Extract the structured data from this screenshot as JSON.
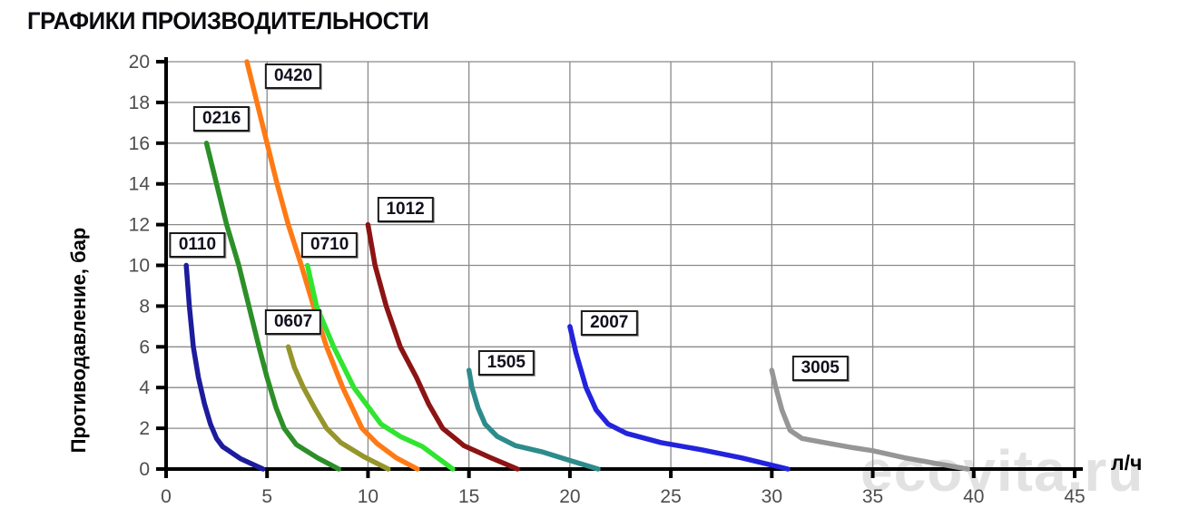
{
  "title": "ГРАФИКИ ПРОИЗВОДИТЕЛЬНОСТИ",
  "watermark": "ecovita.ru",
  "chart_data": {
    "type": "line",
    "title": "ГРАФИКИ ПРОИЗВОДИТЕЛЬНОСТИ",
    "xlabel": "л/ч",
    "ylabel": "Противодавление, бар",
    "xlim": [
      0,
      45
    ],
    "ylim": [
      0,
      20
    ],
    "x_ticks": [
      0,
      5,
      10,
      15,
      20,
      25,
      30,
      35,
      40,
      45
    ],
    "y_ticks": [
      0,
      2,
      4,
      6,
      8,
      10,
      12,
      14,
      16,
      18,
      20
    ],
    "grid": true,
    "legend": "inline-label-boxes",
    "colors": {
      "grid": "#8a8a8a",
      "axis": "#000000",
      "tick_label": "#4d4d4d"
    },
    "series": [
      {
        "name": "0110",
        "color": "#1c1c9c",
        "label_pos": [
          1.55,
          11.0
        ],
        "points": [
          [
            1.0,
            10
          ],
          [
            1.15,
            8
          ],
          [
            1.35,
            6
          ],
          [
            1.6,
            4.5
          ],
          [
            1.9,
            3.2
          ],
          [
            2.2,
            2.2
          ],
          [
            2.5,
            1.5
          ],
          [
            2.8,
            1.1
          ],
          [
            3.7,
            0.5
          ],
          [
            4.8,
            0
          ]
        ]
      },
      {
        "name": "0216",
        "color": "#2c8f28",
        "label_pos": [
          2.75,
          17.2
        ],
        "points": [
          [
            2.0,
            16
          ],
          [
            2.5,
            14
          ],
          [
            3.0,
            12
          ],
          [
            3.6,
            10
          ],
          [
            4.1,
            8
          ],
          [
            4.6,
            6
          ],
          [
            5.0,
            4.5
          ],
          [
            5.45,
            3
          ],
          [
            5.85,
            2
          ],
          [
            6.45,
            1.2
          ],
          [
            7.5,
            0.55
          ],
          [
            8.55,
            0
          ]
        ]
      },
      {
        "name": "0420",
        "color": "#ff7a14",
        "label_pos": [
          6.3,
          19.3
        ],
        "points": [
          [
            4.0,
            20
          ],
          [
            4.5,
            18
          ],
          [
            5.0,
            16
          ],
          [
            5.5,
            14
          ],
          [
            6.05,
            12
          ],
          [
            6.7,
            10
          ],
          [
            7.3,
            8
          ],
          [
            7.95,
            6
          ],
          [
            8.75,
            4
          ],
          [
            9.7,
            2
          ],
          [
            10.45,
            1.25
          ],
          [
            11.4,
            0.55
          ],
          [
            12.45,
            0
          ]
        ]
      },
      {
        "name": "0607",
        "color": "#95952b",
        "label_pos": [
          6.3,
          7.2
        ],
        "points": [
          [
            6.05,
            6
          ],
          [
            6.35,
            5
          ],
          [
            6.8,
            4
          ],
          [
            7.35,
            3
          ],
          [
            7.95,
            2
          ],
          [
            8.65,
            1.3
          ],
          [
            9.8,
            0.6
          ],
          [
            11.0,
            0
          ]
        ]
      },
      {
        "name": "0710",
        "color": "#30e530",
        "label_pos": [
          8.1,
          11.0
        ],
        "points": [
          [
            7.0,
            10
          ],
          [
            7.45,
            8
          ],
          [
            8.3,
            6
          ],
          [
            9.3,
            4
          ],
          [
            10.05,
            3
          ],
          [
            10.65,
            2.2
          ],
          [
            11.6,
            1.6
          ],
          [
            12.7,
            1.1
          ],
          [
            14.2,
            0
          ]
        ]
      },
      {
        "name": "1012",
        "color": "#8c1414",
        "label_pos": [
          11.85,
          12.75
        ],
        "points": [
          [
            10.0,
            12
          ],
          [
            10.35,
            10
          ],
          [
            10.9,
            8
          ],
          [
            11.6,
            6
          ],
          [
            12.4,
            4.5
          ],
          [
            13.0,
            3.2
          ],
          [
            13.7,
            2
          ],
          [
            14.75,
            1.15
          ],
          [
            16.1,
            0.55
          ],
          [
            17.4,
            0
          ]
        ]
      },
      {
        "name": "1505",
        "color": "#2e8b8b",
        "label_pos": [
          16.85,
          5.2
        ],
        "points": [
          [
            15.0,
            4.85
          ],
          [
            15.15,
            4
          ],
          [
            15.45,
            3
          ],
          [
            15.8,
            2.2
          ],
          [
            16.4,
            1.6
          ],
          [
            17.3,
            1.15
          ],
          [
            18.6,
            0.85
          ],
          [
            19.9,
            0.45
          ],
          [
            21.4,
            0
          ]
        ]
      },
      {
        "name": "2007",
        "color": "#2323dd",
        "label_pos": [
          21.95,
          7.15
        ],
        "points": [
          [
            20.0,
            7
          ],
          [
            20.3,
            5.7
          ],
          [
            20.8,
            4
          ],
          [
            21.3,
            2.9
          ],
          [
            21.9,
            2.2
          ],
          [
            22.8,
            1.75
          ],
          [
            24.5,
            1.3
          ],
          [
            26.5,
            0.95
          ],
          [
            28.5,
            0.55
          ],
          [
            30.8,
            0
          ]
        ]
      },
      {
        "name": "3005",
        "color": "#969696",
        "label_pos": [
          32.4,
          4.95
        ],
        "points": [
          [
            30.0,
            4.85
          ],
          [
            30.2,
            4
          ],
          [
            30.5,
            2.9
          ],
          [
            30.9,
            1.9
          ],
          [
            31.5,
            1.5
          ],
          [
            32.6,
            1.3
          ],
          [
            34.0,
            1.05
          ],
          [
            35.0,
            0.9
          ],
          [
            36.6,
            0.55
          ],
          [
            38.0,
            0.3
          ],
          [
            39.7,
            0
          ]
        ]
      }
    ]
  }
}
